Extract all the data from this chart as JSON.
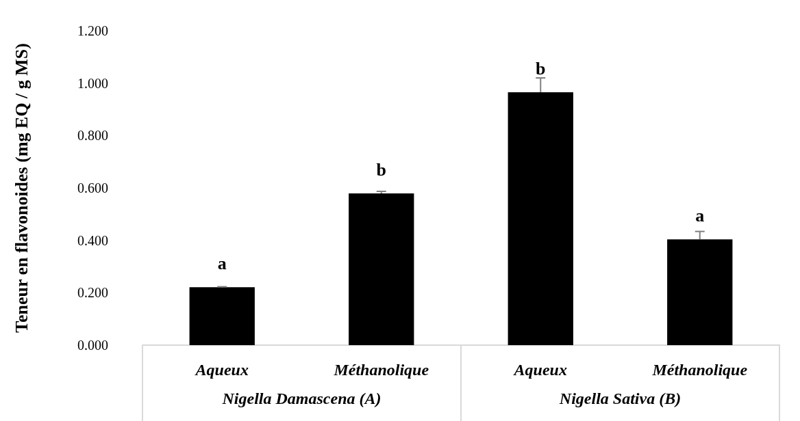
{
  "chart_data": {
    "type": "bar",
    "ylabel": "Teneur en flavonoides (mg EQ / g MS)",
    "categories": [
      "Aqueux",
      "Méthanolique",
      "Aqueux",
      "Méthanolique"
    ],
    "values": [
      0.221,
      0.579,
      0.965,
      0.404
    ],
    "errors": [
      0.002,
      0.008,
      0.055,
      0.03
    ],
    "value_labels": [
      "a",
      "b",
      "b",
      "a"
    ],
    "color": "#000000",
    "annotations": [
      "Nigella Damascena (A)",
      "Nigella Sativa (B)"
    ],
    "ylim": [
      0,
      1.2
    ],
    "yticks": [
      {
        "value": 0,
        "label": "0.000"
      },
      {
        "value": 0.2,
        "label": "0.200"
      },
      {
        "value": 0.4,
        "label": "0.400"
      },
      {
        "value": 0.6,
        "label": "0.600"
      },
      {
        "value": 0.8,
        "label": "0.800"
      },
      {
        "value": 1.0,
        "label": "1.000"
      },
      {
        "value": 1.2,
        "label": "1.200"
      }
    ],
    "grid": false
  }
}
